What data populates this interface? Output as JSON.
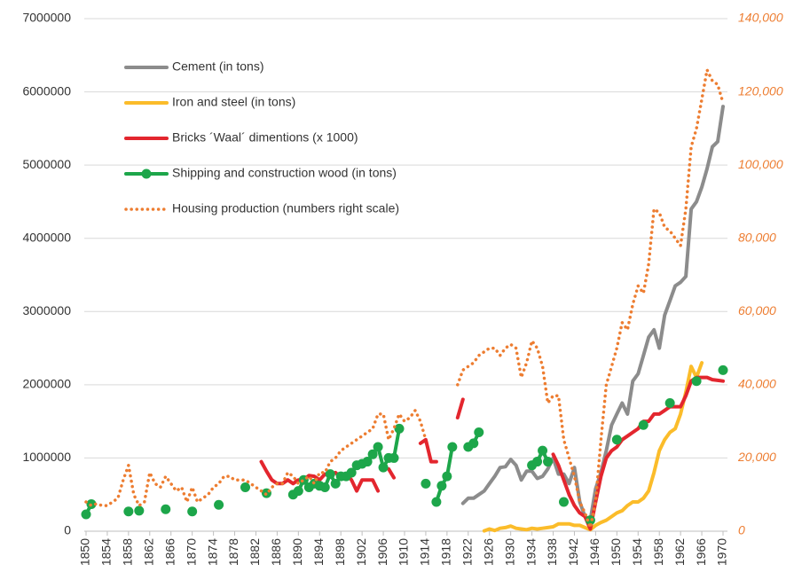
{
  "chart_data": {
    "type": "line",
    "xlim": [
      1850,
      1970
    ],
    "xticks": [
      1850,
      1854,
      1858,
      1862,
      1866,
      1870,
      1874,
      1878,
      1882,
      1886,
      1890,
      1894,
      1898,
      1902,
      1906,
      1910,
      1914,
      1918,
      1922,
      1926,
      1930,
      1934,
      1938,
      1942,
      1946,
      1950,
      1954,
      1958,
      1962,
      1966,
      1970
    ],
    "ylim": [
      0,
      7000000
    ],
    "yticks": [
      0,
      1000000,
      2000000,
      3000000,
      4000000,
      5000000,
      6000000,
      7000000
    ],
    "y2lim": [
      0,
      140000
    ],
    "y2ticks": [
      0,
      {
        "value": 20000,
        "label": "20,000"
      },
      {
        "value": 40000,
        "label": "40,000"
      },
      {
        "value": 60000,
        "label": "60,000"
      },
      {
        "value": 80000,
        "label": "80,000"
      },
      {
        "value": 100000,
        "label": "100,000"
      },
      {
        "value": 120000,
        "label": "120,000"
      },
      {
        "value": 140000,
        "label": "140,000"
      }
    ],
    "grid": true,
    "legend": "upper-left",
    "series": [
      {
        "name": "Cement (in tons)",
        "color": "#8c8c8c",
        "line_style": "solid",
        "x": [
          1921,
          1922,
          1923,
          1924,
          1925,
          1926,
          1927,
          1928,
          1929,
          1930,
          1931,
          1932,
          1933,
          1934,
          1935,
          1936,
          1937,
          1938,
          1939,
          1940,
          1941,
          1942,
          1943,
          1944,
          1945,
          1946,
          1947,
          1948,
          1949,
          1950,
          1951,
          1952,
          1953,
          1954,
          1955,
          1956,
          1957,
          1958,
          1959,
          1960,
          1961,
          1962,
          1963,
          1964,
          1965,
          1966,
          1967,
          1968,
          1969,
          1970
        ],
        "values": [
          380000,
          450000,
          450000,
          500000,
          550000,
          650000,
          750000,
          870000,
          880000,
          980000,
          900000,
          700000,
          820000,
          820000,
          720000,
          750000,
          850000,
          1000000,
          780000,
          780000,
          650000,
          870000,
          400000,
          200000,
          150000,
          580000,
          800000,
          1100000,
          1450000,
          1600000,
          1750000,
          1600000,
          2050000,
          2150000,
          2400000,
          2650000,
          2750000,
          2500000,
          2950000,
          3150000,
          3350000,
          3400000,
          3480000,
          4400000,
          4500000,
          4700000,
          4950000,
          5250000,
          5320000,
          5800000
        ]
      },
      {
        "name": "Iron and steel (in tons)",
        "color": "#fbbc2a",
        "line_style": "solid",
        "x": [
          1925,
          1926,
          1927,
          1928,
          1929,
          1930,
          1931,
          1932,
          1933,
          1934,
          1935,
          1936,
          1937,
          1938,
          1939,
          1940,
          1941,
          1942,
          1943,
          1944,
          1945,
          1946,
          1947,
          1948,
          1949,
          1950,
          1951,
          1952,
          1953,
          1954,
          1955,
          1956,
          1957,
          1958,
          1959,
          1960,
          1961,
          1962,
          1963,
          1964,
          1965,
          1966
        ],
        "values": [
          5000,
          30000,
          10000,
          40000,
          50000,
          70000,
          40000,
          30000,
          20000,
          40000,
          30000,
          40000,
          50000,
          60000,
          100000,
          100000,
          100000,
          80000,
          80000,
          50000,
          20000,
          80000,
          120000,
          150000,
          200000,
          250000,
          280000,
          350000,
          400000,
          400000,
          450000,
          550000,
          800000,
          1100000,
          1250000,
          1350000,
          1400000,
          1600000,
          1900000,
          2250000,
          2100000,
          2300000
        ]
      },
      {
        "name": "Bricks ´Waal´ dimentions (x 1000)",
        "color": "#e3262e",
        "line_style": "solid",
        "x": [
          1883,
          1884,
          1885,
          1886,
          1887,
          1888,
          1889,
          1890,
          1891,
          1892,
          1893,
          1894,
          1895,
          1896,
          1897,
          1898,
          1899,
          1900,
          1901,
          1902,
          1903,
          1904,
          1905,
          1906,
          1907,
          1908,
          1909,
          1913,
          1914,
          1915,
          1916,
          1917,
          1920,
          1921,
          1922,
          1938,
          1939,
          1940,
          1941,
          1942,
          1943,
          1944,
          1945,
          1946,
          1947,
          1948,
          1949,
          1950,
          1951,
          1952,
          1953,
          1954,
          1955,
          1956,
          1957,
          1958,
          1959,
          1960,
          1961,
          1962,
          1963,
          1964,
          1965,
          1966,
          1967,
          1968,
          1969,
          1970
        ],
        "values": [
          950000,
          820000,
          700000,
          650000,
          650000,
          700000,
          650000,
          700000,
          700000,
          760000,
          750000,
          700000,
          780000,
          770000,
          800000,
          730000,
          780000,
          700000,
          550000,
          700000,
          700000,
          700000,
          550000,
          null,
          850000,
          730000,
          null,
          1200000,
          1250000,
          950000,
          950000,
          null,
          1550000,
          1800000,
          null,
          1050000,
          900000,
          700000,
          500000,
          350000,
          250000,
          200000,
          30000,
          400000,
          750000,
          1000000,
          1100000,
          1150000,
          1250000,
          1300000,
          1350000,
          1400000,
          1500000,
          1500000,
          1600000,
          1600000,
          1650000,
          1700000,
          1700000,
          1700000,
          1850000,
          2050000,
          2100000,
          2100000,
          2100000,
          2070000,
          2060000,
          2050000
        ]
      },
      {
        "name": "Shipping and construction wood (in tons)",
        "color": "#1da64a",
        "line_style": "solid",
        "markers": true,
        "x": [
          1850,
          1851,
          1852,
          1858,
          1859,
          1860,
          1861,
          1865,
          1866,
          1870,
          1871,
          1875,
          1876,
          1880,
          1881,
          1884,
          1885,
          1889,
          1890,
          1891,
          1892,
          1893,
          1894,
          1895,
          1896,
          1897,
          1898,
          1899,
          1900,
          1901,
          1902,
          1903,
          1904,
          1905,
          1906,
          1907,
          1908,
          1909,
          1910,
          1914,
          1915,
          1916,
          1917,
          1918,
          1919,
          1920,
          1922,
          1923,
          1924,
          1925,
          1934,
          1935,
          1936,
          1937,
          1938,
          1940,
          1941,
          1945,
          1946,
          1950,
          1951,
          1955,
          1956,
          1960,
          1961,
          1965,
          1966,
          1970
        ],
        "values": [
          230000,
          370000,
          null,
          270000,
          null,
          280000,
          null,
          300000,
          null,
          270000,
          null,
          360000,
          null,
          600000,
          null,
          520000,
          null,
          500000,
          550000,
          700000,
          600000,
          650000,
          620000,
          600000,
          780000,
          650000,
          750000,
          750000,
          800000,
          900000,
          920000,
          950000,
          1050000,
          1150000,
          870000,
          1000000,
          1000000,
          1400000,
          null,
          650000,
          null,
          400000,
          620000,
          750000,
          1150000,
          null,
          1150000,
          1200000,
          1350000,
          null,
          900000,
          950000,
          1100000,
          950000,
          null,
          400000,
          null,
          150000,
          null,
          1250000,
          null,
          1450000,
          null,
          1750000,
          null,
          2050000,
          null,
          2200000
        ]
      },
      {
        "name": "Housing production (numbers right scale)",
        "color": "#ed7d31",
        "line_style": "dotted",
        "axis": "y2",
        "x": [
          1850,
          1851,
          1852,
          1853,
          1854,
          1855,
          1856,
          1857,
          1858,
          1859,
          1860,
          1861,
          1862,
          1863,
          1864,
          1865,
          1866,
          1867,
          1868,
          1869,
          1870,
          1871,
          1872,
          1873,
          1874,
          1875,
          1876,
          1877,
          1878,
          1879,
          1880,
          1881,
          1882,
          1883,
          1884,
          1885,
          1886,
          1887,
          1888,
          1889,
          1890,
          1891,
          1892,
          1893,
          1894,
          1895,
          1896,
          1897,
          1898,
          1899,
          1900,
          1901,
          1902,
          1903,
          1904,
          1905,
          1906,
          1907,
          1908,
          1909,
          1910,
          1911,
          1912,
          1913,
          1914,
          1915,
          1920,
          1921,
          1922,
          1923,
          1924,
          1925,
          1926,
          1927,
          1928,
          1929,
          1930,
          1931,
          1932,
          1933,
          1934,
          1935,
          1936,
          1937,
          1938,
          1939,
          1940,
          1941,
          1942,
          1943,
          1944,
          1945,
          1946,
          1947,
          1948,
          1949,
          1950,
          1951,
          1952,
          1953,
          1954,
          1955,
          1956,
          1957,
          1958,
          1959,
          1960,
          1961,
          1962,
          1963,
          1964,
          1965,
          1966,
          1967,
          1968,
          1969,
          1970
        ],
        "values": [
          8000,
          7000,
          7500,
          7000,
          7000,
          8000,
          9000,
          14000,
          18000,
          10000,
          7000,
          8000,
          16000,
          13000,
          12000,
          15000,
          13000,
          11000,
          12000,
          8000,
          12000,
          8000,
          9000,
          10000,
          12000,
          13000,
          15000,
          15000,
          14000,
          14000,
          14000,
          13000,
          12000,
          11000,
          10000,
          12000,
          13000,
          13000,
          16000,
          15000,
          13000,
          14000,
          15000,
          13000,
          16000,
          16000,
          19000,
          20000,
          22000,
          23000,
          24000,
          25000,
          26000,
          27000,
          28000,
          32000,
          32000,
          25000,
          28000,
          32000,
          30000,
          31000,
          33000,
          30000,
          25000,
          null,
          40000,
          44000,
          45000,
          46000,
          48000,
          49000,
          50000,
          50000,
          48000,
          50000,
          51000,
          50000,
          42000,
          46000,
          52000,
          50000,
          45000,
          35000,
          37000,
          37000,
          25000,
          20000,
          15000,
          8000,
          5000,
          1000,
          8000,
          25000,
          40000,
          45000,
          50000,
          57000,
          55000,
          62000,
          67000,
          65000,
          73000,
          88000,
          87000,
          83000,
          82000,
          80000,
          78000,
          88000,
          105000,
          110000,
          118000,
          126000,
          123000,
          122000,
          117000
        ]
      }
    ]
  }
}
